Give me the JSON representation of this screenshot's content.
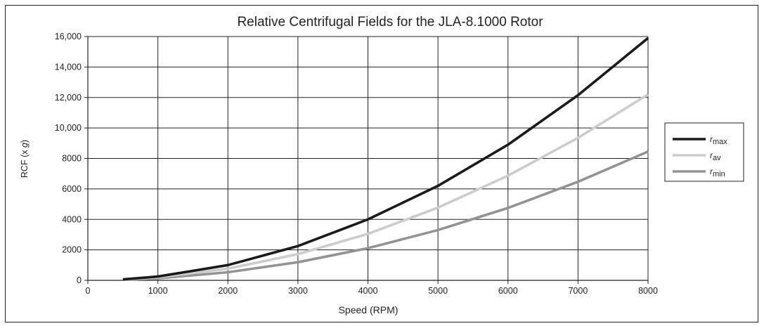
{
  "chart_data": {
    "type": "line",
    "title": "Relative Centrifugal Fields for the JLA-8.1000 Rotor",
    "xlabel": "Speed (RPM)",
    "ylabel_prefix": "RCF (x ",
    "ylabel_italic": "g",
    "ylabel_suffix": ")",
    "xlim": [
      0,
      8000
    ],
    "ylim": [
      0,
      16000
    ],
    "x_ticks": [
      0,
      1000,
      2000,
      3000,
      4000,
      5000,
      6000,
      7000,
      8000
    ],
    "x_tick_labels": [
      "0",
      "1000",
      "2000",
      "3000",
      "4000",
      "5000",
      "6000",
      "7000",
      "8000"
    ],
    "y_ticks": [
      0,
      2000,
      4000,
      6000,
      8000,
      10000,
      12000,
      14000,
      16000
    ],
    "y_tick_labels": [
      "0",
      "2000",
      "4000",
      "6000",
      "8000",
      "10,000",
      "12,000",
      "14,000",
      "16,000"
    ],
    "grid": true,
    "legend_position": "right",
    "x": [
      500,
      1000,
      2000,
      3000,
      4000,
      5000,
      6000,
      7000,
      8000
    ],
    "series": [
      {
        "name_base": "r",
        "name_sub": "max",
        "color": "#1a1a1a",
        "values": [
          60,
          250,
          1000,
          2250,
          4000,
          6200,
          8900,
          12150,
          15900
        ]
      },
      {
        "name_base": "r",
        "name_sub": "av",
        "color": "#cccccc",
        "values": [
          45,
          190,
          770,
          1720,
          3050,
          4770,
          6870,
          9350,
          12200
        ]
      },
      {
        "name_base": "r",
        "name_sub": "min",
        "color": "#939393",
        "values": [
          35,
          130,
          530,
          1190,
          2110,
          3300,
          4750,
          6470,
          8450
        ]
      }
    ]
  }
}
